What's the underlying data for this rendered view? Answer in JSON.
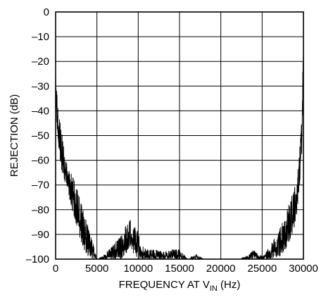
{
  "chart_data": {
    "type": "line",
    "title": "",
    "xlabel": "FREQUENCY AT V",
    "xlabel_sub": "IN",
    "xlabel_suffix": " (Hz)",
    "ylabel": "REJECTION (dB)",
    "xlim": [
      0,
      30000
    ],
    "ylim": [
      -100,
      0
    ],
    "grid": true,
    "x_ticks": [
      0,
      5000,
      10000,
      15000,
      20000,
      25000,
      30000
    ],
    "x_tick_labels": [
      "0",
      "5000",
      "10000",
      "15000",
      "20000",
      "25000",
      "30000"
    ],
    "y_ticks": [
      0,
      -10,
      -20,
      -30,
      -40,
      -50,
      -60,
      -70,
      -80,
      -90,
      -100
    ],
    "y_tick_labels": [
      "0",
      "–10",
      "–20",
      "–30",
      "–40",
      "–50",
      "–60",
      "–70",
      "–80",
      "–90",
      "–100"
    ],
    "series": [
      {
        "color": "#000000",
        "noise_envelope": {
          "x": [
            0,
            100,
            300,
            600,
            1000,
            1500,
            2000,
            2500,
            3000,
            3500,
            4000,
            4500,
            5000,
            6000,
            7000,
            8000,
            8500,
            9000,
            9500,
            10000,
            10500,
            11000,
            12000,
            13000,
            14000,
            15000,
            16000,
            17000,
            18000,
            19000,
            20000,
            21000,
            22000,
            23000,
            23500,
            24000,
            25000,
            25500,
            26000,
            26500,
            27000,
            27500,
            28000,
            28500,
            29000,
            29300,
            29600,
            29800,
            29900,
            30000
          ],
          "upper": [
            -26,
            -30,
            -38,
            -45,
            -55,
            -63,
            -66,
            -70,
            -76,
            -82,
            -88,
            -93,
            -100,
            -98,
            -94,
            -90,
            -86,
            -84,
            -86,
            -88,
            -94,
            -96,
            -96,
            -97,
            -96,
            -96,
            -100,
            -98,
            -100,
            -100,
            -100,
            -100,
            -100,
            -99,
            -98,
            -96,
            -99,
            -97,
            -94,
            -91,
            -88,
            -84,
            -80,
            -75,
            -70,
            -65,
            -52,
            -42,
            -25,
            -15
          ],
          "lower": [
            -40,
            -45,
            -55,
            -62,
            -68,
            -74,
            -80,
            -86,
            -92,
            -98,
            -100,
            -100,
            -100,
            -100,
            -100,
            -100,
            -98,
            -96,
            -98,
            -100,
            -100,
            -100,
            -100,
            -100,
            -100,
            -100,
            -100,
            -100,
            -100,
            -100,
            -100,
            -100,
            -100,
            -100,
            -100,
            -100,
            -100,
            -100,
            -100,
            -100,
            -100,
            -98,
            -96,
            -92,
            -86,
            -80,
            -70,
            -58,
            -45,
            -30
          ]
        }
      }
    ]
  }
}
